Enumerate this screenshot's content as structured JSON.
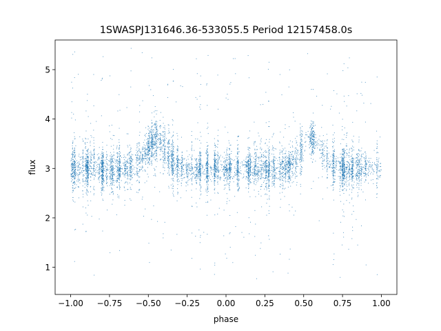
{
  "chart_data": {
    "type": "scatter",
    "title": "1SWASPJ131646.36-533055.5 Period 12157458.0s",
    "xlabel": "phase",
    "ylabel": "flux",
    "xlim": [
      -1.1,
      1.1
    ],
    "ylim": [
      0.45,
      5.6
    ],
    "xticks": [
      -1.0,
      -0.75,
      -0.5,
      -0.25,
      0.0,
      0.25,
      0.5,
      0.75,
      1.0
    ],
    "xtick_labels": [
      "−1.00",
      "−0.75",
      "−0.50",
      "−0.25",
      "0.00",
      "0.25",
      "0.50",
      "0.75",
      "1.00"
    ],
    "yticks": [
      1,
      2,
      3,
      4,
      5
    ],
    "ytick_labels": [
      "1",
      "2",
      "3",
      "4",
      "5"
    ],
    "grid": false,
    "marker_color": "#1f77b4",
    "series": [
      {
        "x_range": [
          -1.0,
          1.0
        ],
        "y_median": 3.0,
        "y_typical_range": [
          2.3,
          4.2
        ],
        "y_extreme_range": [
          0.7,
          5.45
        ],
        "brighter_phases": [
          -0.45,
          0.55
        ],
        "brighter_phase_y": 3.6
      }
    ]
  }
}
